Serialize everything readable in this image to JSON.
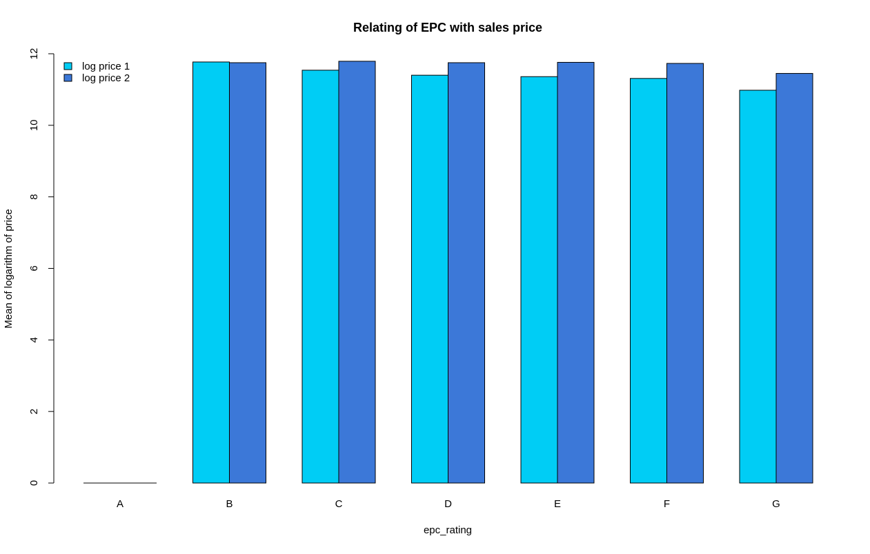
{
  "chart_data": {
    "type": "bar",
    "title": "Relating of EPC with sales price",
    "xlabel": "epc_rating",
    "ylabel": "Mean of logarithm of price",
    "categories": [
      "A",
      "B",
      "C",
      "D",
      "E",
      "F",
      "G"
    ],
    "series": [
      {
        "name": "log price 1",
        "color": "#00CDF5",
        "values": [
          0,
          11.77,
          11.54,
          11.4,
          11.36,
          11.31,
          10.98
        ]
      },
      {
        "name": "log price 2",
        "color": "#3C78D8",
        "values": [
          0,
          11.75,
          11.79,
          11.75,
          11.76,
          11.73,
          11.45
        ]
      }
    ],
    "ylim": [
      0,
      12
    ],
    "yticks": [
      0,
      2,
      4,
      6,
      8,
      10,
      12
    ],
    "grid": false,
    "legend_position": "top-left"
  }
}
